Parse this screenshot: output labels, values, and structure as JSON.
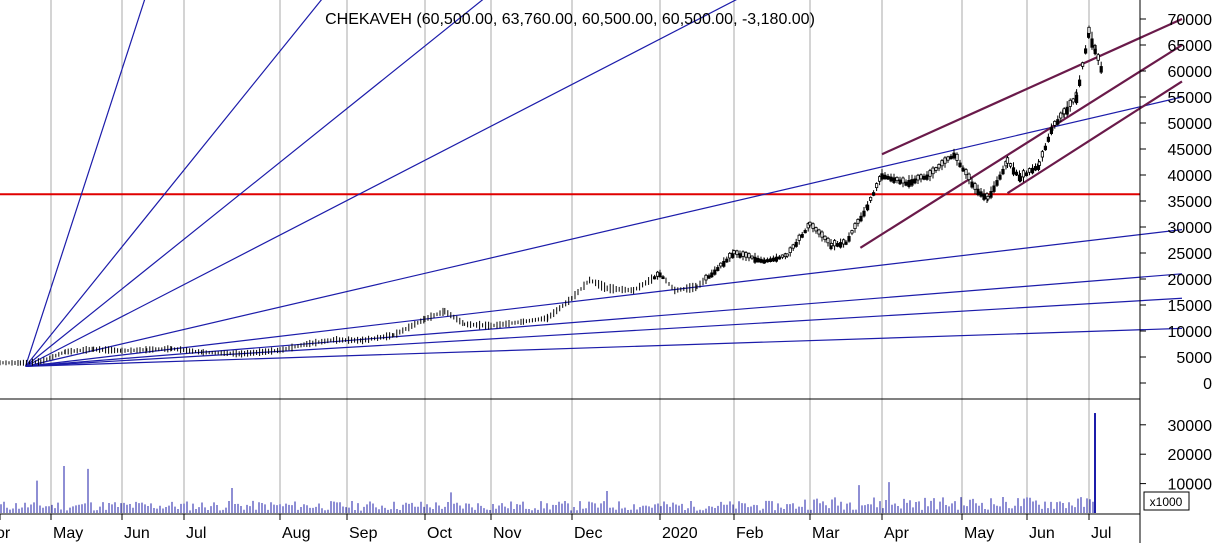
{
  "chart_data": {
    "type": "candlestick",
    "title": "CHEKAVEH (60,500.00, 63,760.00, 60,500.00, 60,500.00, -3,180.00)",
    "x_months": [
      "Apr",
      "May",
      "Jun",
      "Jul",
      "Aug",
      "Sep",
      "Oct",
      "Nov",
      "Dec",
      "2020",
      "Feb",
      "Mar",
      "Apr",
      "May",
      "Jun",
      "Jul"
    ],
    "x_month_labels": [
      "or",
      "May",
      "Jun",
      "Jul",
      "Aug",
      "Sep",
      "Oct",
      "Nov",
      "Dec",
      "2020",
      "Feb",
      "Mar",
      "Apr",
      "May",
      "Jun",
      "Jul"
    ],
    "price_axis": {
      "ticks": [
        0,
        5000,
        10000,
        15000,
        20000,
        25000,
        30000,
        35000,
        40000,
        45000,
        50000,
        55000,
        60000,
        65000,
        70000
      ],
      "tick_labels": [
        "0",
        "5000",
        "10000",
        "15000",
        "20000",
        "25000",
        "30000",
        "35000",
        "40000",
        "45000",
        "50000",
        "55000",
        "60000",
        "65000",
        "70000"
      ],
      "range": [
        -3000,
        73000
      ]
    },
    "volume_axis": {
      "ticks": [
        10000,
        20000,
        30000
      ],
      "tick_labels": [
        "10000",
        "20000",
        "30000"
      ],
      "multiplier_label": "x1000",
      "range": [
        0,
        36000
      ]
    },
    "horizontal_line": {
      "value": 36300,
      "color": "#e00000"
    },
    "price_points": [
      [
        0,
        3900
      ],
      [
        0.4,
        3850
      ],
      [
        0.8,
        4100
      ],
      [
        1.2,
        6000
      ],
      [
        1.6,
        6500
      ],
      [
        2.0,
        6200
      ],
      [
        2.4,
        6400
      ],
      [
        2.8,
        6600
      ],
      [
        3.2,
        5900
      ],
      [
        3.6,
        5600
      ],
      [
        4.0,
        6300
      ],
      [
        4.4,
        7500
      ],
      [
        4.8,
        8300
      ],
      [
        5.2,
        8200
      ],
      [
        5.6,
        9200
      ],
      [
        6.0,
        12300
      ],
      [
        6.3,
        13800
      ],
      [
        6.6,
        11300
      ],
      [
        7.0,
        11000
      ],
      [
        7.4,
        11800
      ],
      [
        7.7,
        12500
      ],
      [
        8.0,
        16300
      ],
      [
        8.2,
        19800
      ],
      [
        8.4,
        18200
      ],
      [
        8.7,
        17800
      ],
      [
        9.0,
        21000
      ],
      [
        9.2,
        17800
      ],
      [
        9.5,
        18500
      ],
      [
        9.7,
        21000
      ],
      [
        10.0,
        25000
      ],
      [
        10.4,
        23500
      ],
      [
        10.7,
        24500
      ],
      [
        11.0,
        30500
      ],
      [
        11.3,
        26500
      ],
      [
        11.5,
        27000
      ],
      [
        11.8,
        34000
      ],
      [
        12.0,
        40000
      ],
      [
        12.3,
        38500
      ],
      [
        12.6,
        40000
      ],
      [
        12.9,
        44000
      ],
      [
        13.2,
        37500
      ],
      [
        13.4,
        35500
      ],
      [
        13.7,
        42500
      ],
      [
        13.9,
        39500
      ],
      [
        14.2,
        42000
      ],
      [
        14.4,
        49000
      ],
      [
        14.6,
        52000
      ],
      [
        14.8,
        55000
      ],
      [
        15.0,
        67500
      ],
      [
        15.1,
        64000
      ],
      [
        15.2,
        60500
      ]
    ],
    "fan_origin": {
      "month": 0.5,
      "value": 3200
    },
    "fan_lines": [
      {
        "month": 2.4,
        "value": 75000
      },
      {
        "month": 4.7,
        "value": 75000
      },
      {
        "month": 7.0,
        "value": 75000
      },
      {
        "month": 10.2,
        "value": 75000
      },
      {
        "month": 16.5,
        "value": 55000
      },
      {
        "month": 16.5,
        "value": 29500
      },
      {
        "month": 16.5,
        "value": 21000
      },
      {
        "month": 16.5,
        "value": 16300
      },
      {
        "month": 16.5,
        "value": 10500
      }
    ],
    "channel_lines": [
      {
        "from": {
          "month": 12.0,
          "value": 44000
        },
        "to": {
          "month": 16.5,
          "value": 70000
        }
      },
      {
        "from": {
          "month": 11.7,
          "value": 26000
        },
        "to": {
          "month": 16.5,
          "value": 65000
        }
      },
      {
        "from": {
          "month": 13.7,
          "value": 36500
        },
        "to": {
          "month": 16.5,
          "value": 58000
        }
      }
    ],
    "volume_spikes": [
      {
        "month": 0.7,
        "value": 11000
      },
      {
        "month": 1.2,
        "value": 16000
      },
      {
        "month": 1.5,
        "value": 15000
      },
      {
        "month": 3.5,
        "value": 8500
      },
      {
        "month": 6.4,
        "value": 7000
      },
      {
        "month": 8.4,
        "value": 7500
      },
      {
        "month": 11.7,
        "value": 9500
      },
      {
        "month": 12.1,
        "value": 10500
      },
      {
        "month": 15.1,
        "value": 34000
      }
    ],
    "colors": {
      "price": "#000000",
      "fan": "#1c1caa",
      "channel": "#6a1a4a",
      "volume": "#1c1caa",
      "grid": "#a8a8a8"
    },
    "grid": true
  }
}
